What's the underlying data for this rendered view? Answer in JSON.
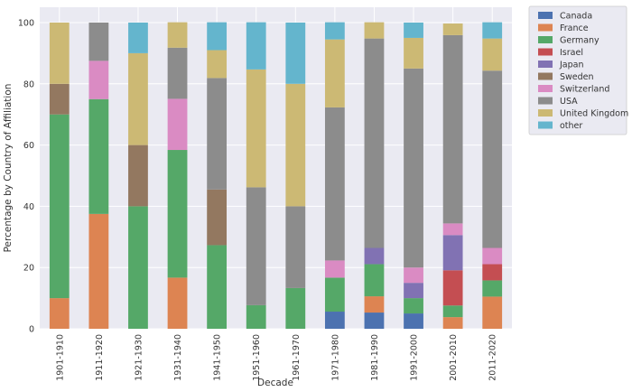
{
  "chart_data": {
    "type": "bar",
    "stacked": true,
    "xlabel": "Decade",
    "ylabel": "Percentage by Country of Affiliation",
    "ylim": [
      0,
      100
    ],
    "yticks": [
      0,
      20,
      40,
      60,
      80,
      100
    ],
    "grid": true,
    "legend_position": "outside-right",
    "categories": [
      "1901-1910",
      "1911-1920",
      "1921-1930",
      "1931-1940",
      "1941-1950",
      "1951-1960",
      "1961-1970",
      "1971-1980",
      "1981-1990",
      "1991-2000",
      "2001-2010",
      "2011-2020"
    ],
    "series": [
      {
        "name": "Canada",
        "color": "#4c72b0",
        "values": [
          0,
          0,
          0,
          0,
          0,
          0,
          0,
          5.6,
          5.3,
          5.0,
          0,
          0
        ]
      },
      {
        "name": "France",
        "color": "#dd8452",
        "values": [
          10,
          37.5,
          0,
          16.7,
          0,
          0,
          0,
          0,
          5.3,
          0,
          3.8,
          10.5
        ]
      },
      {
        "name": "Germany",
        "color": "#55a868",
        "values": [
          60,
          37.5,
          40,
          41.7,
          27.3,
          7.7,
          13.3,
          11.1,
          10.5,
          5.0,
          3.8,
          5.3
        ]
      },
      {
        "name": "Israel",
        "color": "#c44e52",
        "values": [
          0,
          0,
          0,
          0,
          0,
          0,
          0,
          0,
          0,
          0,
          11.5,
          5.3
        ]
      },
      {
        "name": "Japan",
        "color": "#8172b3",
        "values": [
          0,
          0,
          0,
          0,
          0,
          0,
          0,
          0,
          5.3,
          5.0,
          11.5,
          0
        ]
      },
      {
        "name": "Sweden",
        "color": "#937860",
        "values": [
          10,
          0,
          20,
          0,
          18.2,
          0,
          0,
          0,
          0,
          0,
          0,
          0
        ]
      },
      {
        "name": "Switzerland",
        "color": "#da8bc3",
        "values": [
          0,
          12.5,
          0,
          16.7,
          0,
          0,
          0,
          5.6,
          0,
          5.0,
          3.8,
          5.3
        ]
      },
      {
        "name": "USA",
        "color": "#8c8c8c",
        "values": [
          0,
          12.5,
          0,
          16.7,
          36.4,
          38.5,
          26.7,
          50.0,
          68.4,
          65.0,
          61.5,
          57.9
        ]
      },
      {
        "name": "United Kingdom",
        "color": "#ccb974",
        "values": [
          20,
          0,
          30,
          8.3,
          9.1,
          38.5,
          40.0,
          22.2,
          5.3,
          10.0,
          3.8,
          10.5
        ]
      },
      {
        "name": "other",
        "color": "#64b5cd",
        "values": [
          0,
          0,
          10,
          0,
          9.1,
          15.4,
          20.0,
          5.6,
          0,
          5.0,
          0,
          5.3
        ]
      }
    ]
  }
}
